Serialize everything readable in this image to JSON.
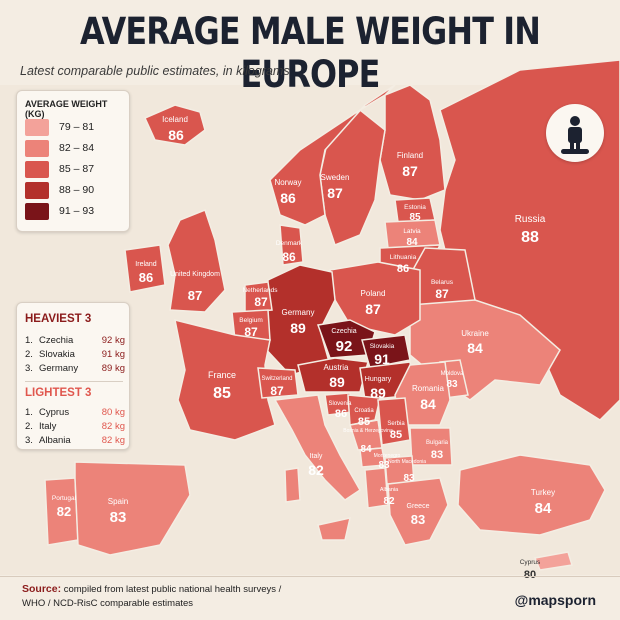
{
  "title": "AVERAGE MALE WEIGHT IN EUROPE",
  "subtitle": "Latest comparable public estimates, in kilograms",
  "legend": {
    "title": "AVERAGE WEIGHT (KG)",
    "items": [
      {
        "label": "79 – 81",
        "color": "#f3a29a"
      },
      {
        "label": "82 – 84",
        "color": "#ec8379"
      },
      {
        "label": "85 – 87",
        "color": "#d9564e"
      },
      {
        "label": "88 – 90",
        "color": "#b3302b"
      },
      {
        "label": "91 – 93",
        "color": "#7a1419"
      }
    ]
  },
  "heaviest": {
    "title": "HEAVIEST 3",
    "items": [
      {
        "rank": "1.",
        "country": "Czechia",
        "value": "92 kg"
      },
      {
        "rank": "2.",
        "country": "Slovakia",
        "value": "91 kg"
      },
      {
        "rank": "3.",
        "country": "Germany",
        "value": "89 kg"
      }
    ]
  },
  "lightest": {
    "title": "LIGHTEST 3",
    "items": [
      {
        "rank": "1.",
        "country": "Cyprus",
        "value": "80 kg"
      },
      {
        "rank": "2.",
        "country": "Italy",
        "value": "82 kg"
      },
      {
        "rank": "3.",
        "country": "Albania",
        "value": "82 kg"
      }
    ]
  },
  "countries": [
    {
      "name": "Iceland",
      "value": "86"
    },
    {
      "name": "Norway",
      "value": "86"
    },
    {
      "name": "Sweden",
      "value": "87"
    },
    {
      "name": "Finland",
      "value": "87"
    },
    {
      "name": "Estonia",
      "value": "85"
    },
    {
      "name": "Latvia",
      "value": "84"
    },
    {
      "name": "Lithuania",
      "value": "86"
    },
    {
      "name": "Russia",
      "value": "88"
    },
    {
      "name": "Ireland",
      "value": "86"
    },
    {
      "name": "United Kingdom",
      "value": "87"
    },
    {
      "name": "Denmark",
      "value": "86"
    },
    {
      "name": "Netherlands",
      "value": "87"
    },
    {
      "name": "Belgium",
      "value": "87"
    },
    {
      "name": "Germany",
      "value": "89"
    },
    {
      "name": "Poland",
      "value": "87"
    },
    {
      "name": "Belarus",
      "value": "87"
    },
    {
      "name": "Ukraine",
      "value": "84"
    },
    {
      "name": "Czechia",
      "value": "92"
    },
    {
      "name": "Slovakia",
      "value": "91"
    },
    {
      "name": "France",
      "value": "85"
    },
    {
      "name": "Switzerland",
      "value": "87"
    },
    {
      "name": "Austria",
      "value": "89"
    },
    {
      "name": "Hungary",
      "value": "89"
    },
    {
      "name": "Moldova",
      "value": "83"
    },
    {
      "name": "Romania",
      "value": "84"
    },
    {
      "name": "Slovenia",
      "value": "86"
    },
    {
      "name": "Croatia",
      "value": "85"
    },
    {
      "name": "Bosnia & Herzegovina",
      "value": "84"
    },
    {
      "name": "Serbia",
      "value": "85"
    },
    {
      "name": "Bulgaria",
      "value": "83"
    },
    {
      "name": "Montenegro",
      "value": "83"
    },
    {
      "name": "North Macedonia",
      "value": "83"
    },
    {
      "name": "Albania",
      "value": "82"
    },
    {
      "name": "Italy",
      "value": "82"
    },
    {
      "name": "Greece",
      "value": "83"
    },
    {
      "name": "Portugal",
      "value": "82"
    },
    {
      "name": "Spain",
      "value": "83"
    },
    {
      "name": "Turkey",
      "value": "84"
    },
    {
      "name": "Cyprus",
      "value": "80"
    }
  ],
  "footer": {
    "source_label": "Source:",
    "source_text_1": "compiled from latest public national health surveys /",
    "source_text_2": "WHO / NCD-RisC comparable estimates"
  },
  "brand": "@mapsporn",
  "icon": "person-on-scale-icon"
}
